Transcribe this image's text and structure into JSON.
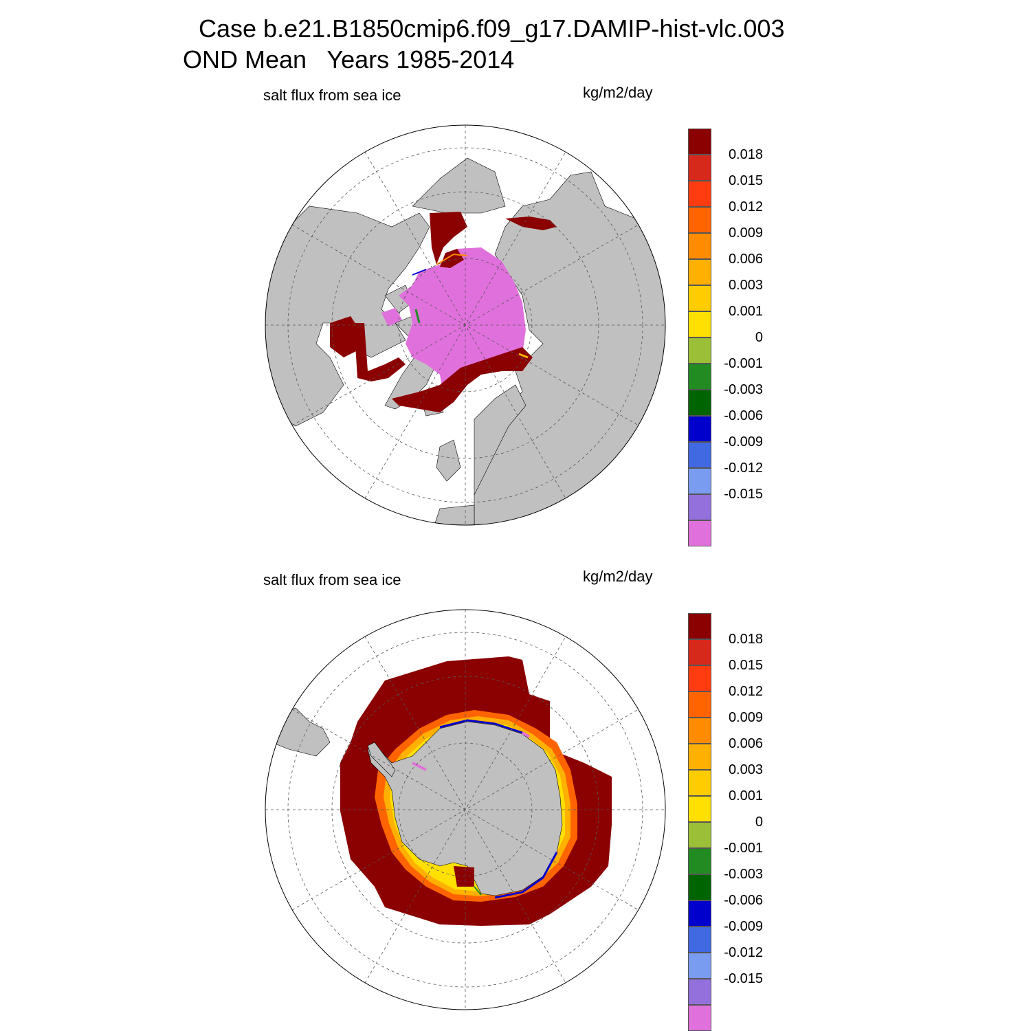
{
  "title": {
    "line1": "Case b.e21.B1850cmip6.f09_g17.DAMIP-hist-vlc.003",
    "line2": "OND Mean   Years 1985-2014"
  },
  "panels": [
    {
      "name": "north",
      "left_label": "salt flux from sea ice",
      "right_label": "kg/m2/day"
    },
    {
      "name": "south",
      "left_label": "salt flux from sea ice",
      "right_label": "kg/m2/day"
    }
  ],
  "colorbar": {
    "colors": [
      "#8b0000",
      "#d7281c",
      "#ff3b10",
      "#ff6400",
      "#ff8c00",
      "#ffb000",
      "#ffcc00",
      "#ffe000",
      "#9bbf36",
      "#228b22",
      "#006400",
      "#0000cd",
      "#4169e1",
      "#7a9cf0",
      "#9370db",
      "#e070dc"
    ],
    "labels": [
      "0.018",
      "0.015",
      "0.012",
      "0.009",
      "0.006",
      "0.003",
      "0.001",
      "0",
      "-0.001",
      "-0.003",
      "-0.006",
      "-0.009",
      "-0.012",
      "-0.015"
    ]
  },
  "map_colors": {
    "land": "#c0c0c0",
    "ocean": "#ffffff",
    "grid": "#555555"
  }
}
